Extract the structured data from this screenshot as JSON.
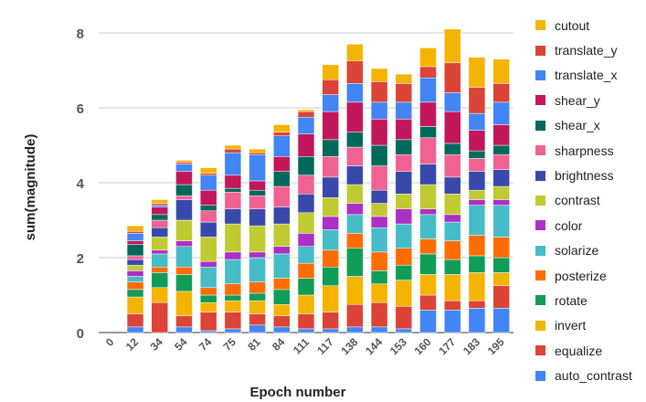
{
  "chart_data": {
    "type": "stacked-bar",
    "title": "",
    "xlabel": "Epoch number",
    "ylabel": "sum(magnitude)",
    "ylim": [
      0,
      8
    ],
    "yticks": [
      0,
      2,
      4,
      6,
      8
    ],
    "grid": true,
    "legend_position": "right",
    "categories": [
      "0",
      "12",
      "34",
      "54",
      "74",
      "75",
      "81",
      "84",
      "111",
      "117",
      "138",
      "144",
      "153",
      "160",
      "177",
      "183",
      "195"
    ],
    "series": [
      {
        "name": "auto_contrast",
        "color": "#4285f4",
        "values": [
          0,
          0.15,
          0,
          0.15,
          0.05,
          0.1,
          0.2,
          0.15,
          0.1,
          0.1,
          0.15,
          0.15,
          0.1,
          0.6,
          0.6,
          0.65,
          0.65
        ]
      },
      {
        "name": "equalize",
        "color": "#db4437",
        "values": [
          0,
          0.35,
          0.8,
          0.3,
          0.5,
          0.45,
          0.3,
          0.3,
          0.4,
          0.45,
          0.6,
          0.65,
          0.6,
          0.4,
          0.25,
          0.2,
          0.6
        ]
      },
      {
        "name": "invert",
        "color": "#f4b400",
        "values": [
          0,
          0.45,
          0.4,
          0.65,
          0.25,
          0.3,
          0.35,
          0.3,
          0.5,
          0.7,
          0.75,
          0.5,
          0.7,
          0.55,
          0.7,
          0.75,
          0.35
        ]
      },
      {
        "name": "rotate",
        "color": "#0f9d58",
        "values": [
          0,
          0.2,
          0.4,
          0.45,
          0.2,
          0.15,
          0.2,
          0.4,
          0.45,
          0.5,
          0.75,
          0.35,
          0.4,
          0.55,
          0.4,
          0.45,
          0.4
        ]
      },
      {
        "name": "posterize",
        "color": "#ff6d00",
        "values": [
          0,
          0.2,
          0.15,
          0.2,
          0.2,
          0.3,
          0.3,
          0.3,
          0.4,
          0.45,
          0.4,
          0.5,
          0.45,
          0.4,
          0.5,
          0.55,
          0.55
        ]
      },
      {
        "name": "solarize",
        "color": "#46bdc6",
        "values": [
          0,
          0.15,
          0.35,
          0.55,
          0.55,
          0.65,
          0.65,
          0.65,
          0.45,
          0.55,
          0.5,
          0.65,
          0.65,
          0.65,
          0.5,
          0.8,
          0.85
        ]
      },
      {
        "name": "color",
        "color": "#ab30c4",
        "values": [
          0,
          0.15,
          0.1,
          0.15,
          0.15,
          0.2,
          0.15,
          0.2,
          0.35,
          0.35,
          0.3,
          0.3,
          0.4,
          0.15,
          0.2,
          0.15,
          0.15
        ]
      },
      {
        "name": "contrast",
        "color": "#c0ca33",
        "values": [
          0,
          0.15,
          0.35,
          0.55,
          0.65,
          0.75,
          0.7,
          0.6,
          0.55,
          0.5,
          0.5,
          0.35,
          0.4,
          0.65,
          0.55,
          0.25,
          0.35
        ]
      },
      {
        "name": "brightness",
        "color": "#3949ab",
        "values": [
          0,
          0.15,
          0.25,
          0.55,
          0.4,
          0.4,
          0.45,
          0.45,
          0.5,
          0.55,
          0.5,
          0.35,
          0.6,
          0.55,
          0.45,
          0.5,
          0.45
        ]
      },
      {
        "name": "sharpness",
        "color": "#f06292",
        "values": [
          0,
          0.1,
          0.2,
          0.1,
          0.3,
          0.45,
          0.35,
          0.55,
          0.5,
          0.55,
          0.5,
          0.65,
          0.45,
          0.7,
          0.6,
          0.35,
          0.4
        ]
      },
      {
        "name": "shear_x",
        "color": "#00695c",
        "values": [
          0,
          0.3,
          0.15,
          0.3,
          0.15,
          0.1,
          0.15,
          0.4,
          0.5,
          0.45,
          0.4,
          0.55,
          0.4,
          0.3,
          0.3,
          0.2,
          0.25
        ]
      },
      {
        "name": "shear_y",
        "color": "#c2185b",
        "values": [
          0,
          0.1,
          0.2,
          0.35,
          0.4,
          0.35,
          0.25,
          0.4,
          0.6,
          0.75,
          0.8,
          0.7,
          0.55,
          0.65,
          0.85,
          0.55,
          0.55
        ]
      },
      {
        "name": "translate_x",
        "color": "#4285f4",
        "values": [
          0,
          0.2,
          0.05,
          0.2,
          0.4,
          0.6,
          0.7,
          0.55,
          0.45,
          0.45,
          0.5,
          0.45,
          0.45,
          0.65,
          0.5,
          0.45,
          0.6
        ]
      },
      {
        "name": "translate_y",
        "color": "#db4437",
        "values": [
          0,
          0.05,
          0.05,
          0.05,
          0.05,
          0.1,
          0.05,
          0.1,
          0.15,
          0.4,
          0.6,
          0.55,
          0.5,
          0.3,
          0.8,
          0.7,
          0.5
        ]
      },
      {
        "name": "cutout",
        "color": "#f4b400",
        "values": [
          0,
          0.15,
          0.1,
          0.05,
          0.15,
          0.1,
          0.1,
          0.2,
          0.05,
          0.4,
          0.45,
          0.35,
          0.25,
          0.5,
          0.9,
          0.8,
          0.65
        ]
      }
    ]
  }
}
